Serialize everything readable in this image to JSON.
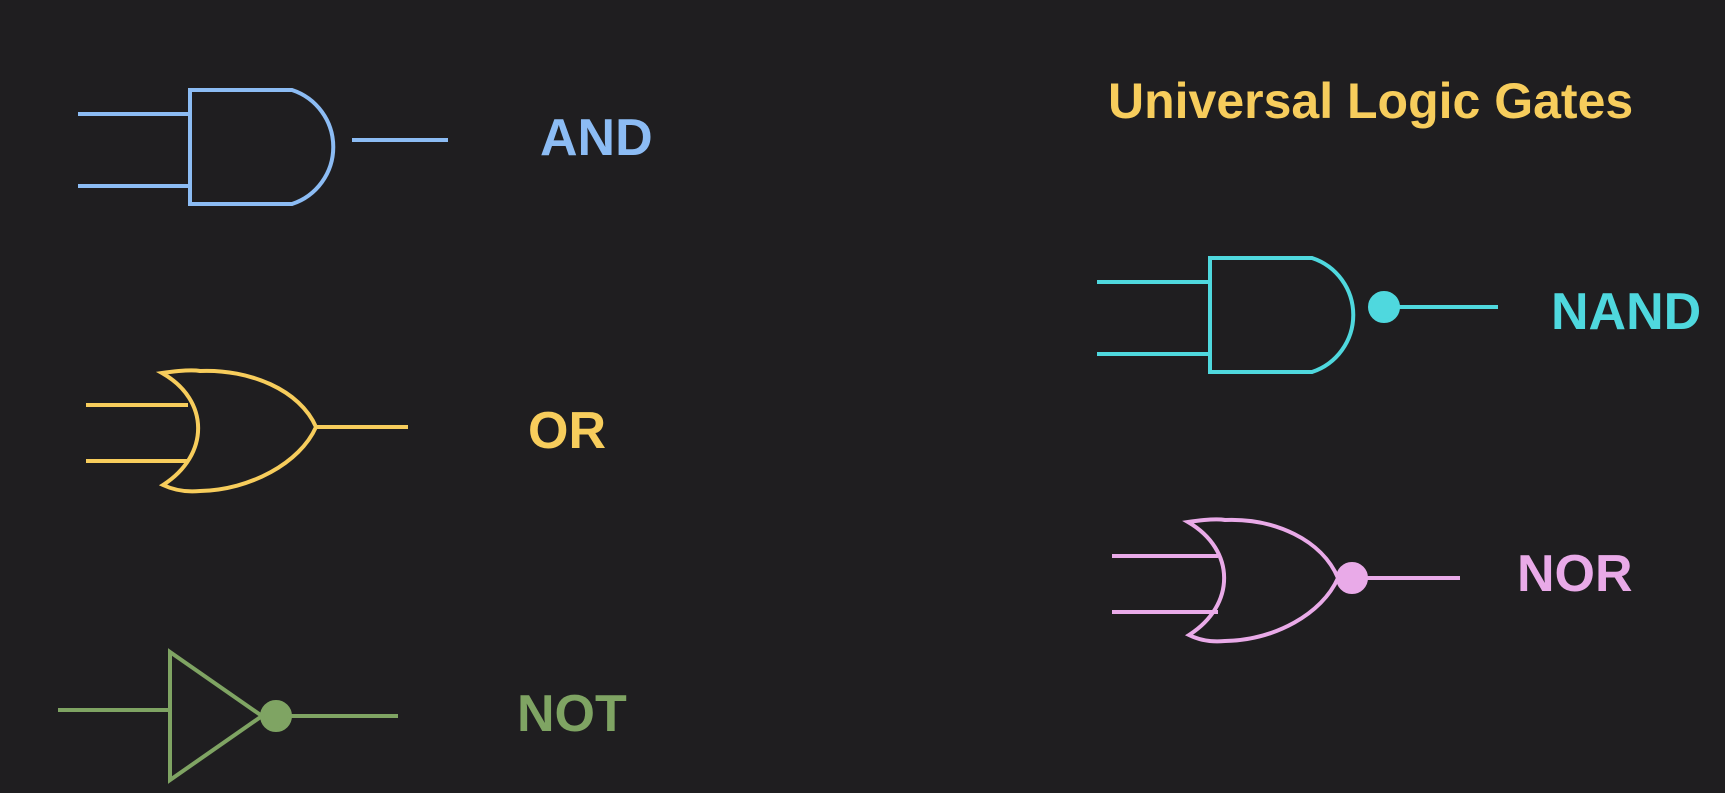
{
  "title": "Universal Logic Gates",
  "gates": {
    "and": {
      "label": "AND",
      "color": "#8cbcf4"
    },
    "or": {
      "label": "OR",
      "color": "#f7cd5c"
    },
    "not": {
      "label": "NOT",
      "color": "#7fa463"
    },
    "nand": {
      "label": "NAND",
      "color": "#4fd8de"
    },
    "nor": {
      "label": "NOR",
      "color": "#e9aae8"
    }
  },
  "colors": {
    "background": "#1f1e20",
    "title": "#f7cd5c"
  }
}
